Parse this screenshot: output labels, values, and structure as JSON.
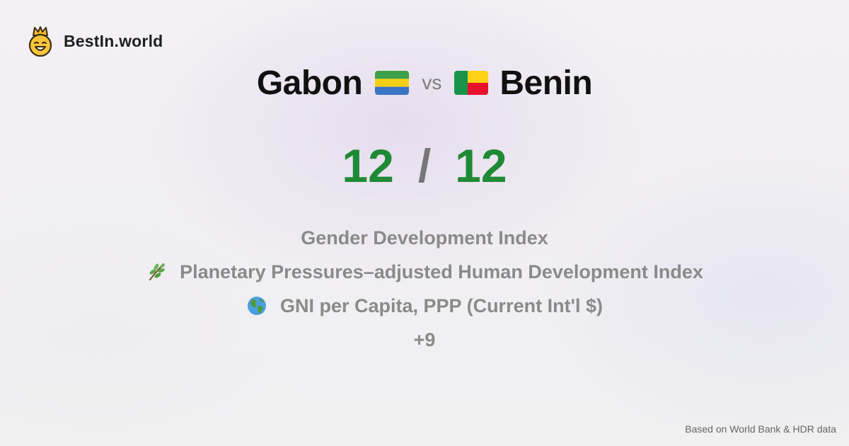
{
  "brand": {
    "name": "BestIn.world",
    "icon": "crowned-smiley-icon"
  },
  "comparison": {
    "left_country": "Gabon",
    "left_flag": "gabon-flag-icon",
    "vs_label": "vs",
    "right_country": "Benin",
    "right_flag": "benin-flag-icon"
  },
  "score": {
    "left": "12",
    "separator": "/",
    "right": "12",
    "color": "#1f8a36"
  },
  "metrics": [
    {
      "label": "Gender Development Index",
      "icon": ""
    },
    {
      "label": "Planetary Pressures–adjusted Human Development Index",
      "icon": "sprig-icon"
    },
    {
      "label": "GNI per Capita, PPP (Current Int'l $)",
      "icon": "globe-icon"
    }
  ],
  "more_label": "+9",
  "footer": {
    "source": "Based on World Bank & HDR data"
  },
  "colors": {
    "gabon": [
      "#3ea04a",
      "#f7d117",
      "#3a75c4"
    ],
    "benin": [
      "#18944a",
      "#fcd116",
      "#e8112d"
    ]
  }
}
